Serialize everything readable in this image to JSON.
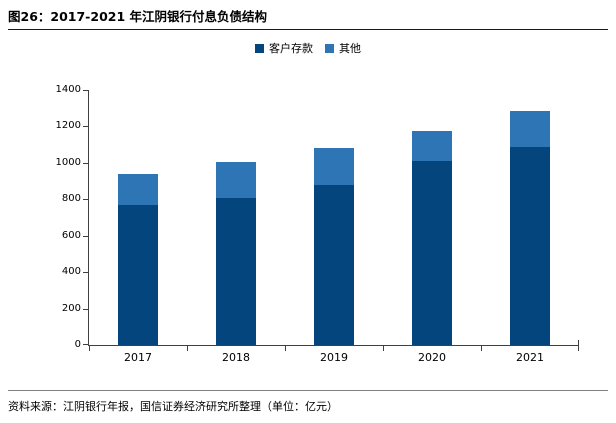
{
  "page": {
    "title": "图26：2017-2021 年江阴银行付息负债结构",
    "source": "资料来源：江阴银行年报，国信证券经济研究所整理（单位：亿元）"
  },
  "chart_data": {
    "type": "bar",
    "stacked": true,
    "title": "2017-2021 年江阴银行付息负债结构",
    "unit": "亿元",
    "categories": [
      "2017",
      "2018",
      "2019",
      "2020",
      "2021"
    ],
    "series": [
      {
        "name": "客户存款",
        "color": "#05457E",
        "values": [
          770,
          805,
          880,
          1010,
          1090
        ]
      },
      {
        "name": "其他",
        "color": "#2E75B6",
        "values": [
          170,
          200,
          200,
          165,
          195
        ]
      }
    ],
    "totals": [
      940,
      1005,
      1080,
      1175,
      1285
    ],
    "ylim": [
      0,
      1400
    ],
    "ytick_step": 200,
    "yticks": [
      0,
      200,
      400,
      600,
      800,
      1000,
      1200,
      1400
    ],
    "grid": false,
    "legend_position": "top-center",
    "axis_color": "#404040"
  }
}
